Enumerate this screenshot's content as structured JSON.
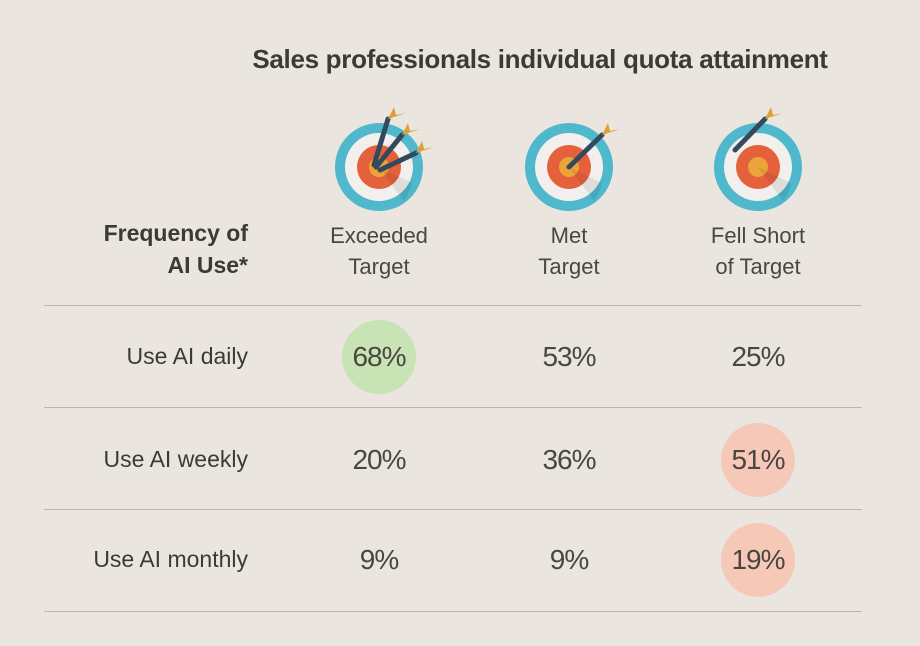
{
  "title": "Sales professionals individual quota attainment",
  "row_header": [
    "Frequency of",
    "AI Use*"
  ],
  "columns": [
    {
      "line1": "Exceeded",
      "line2": "Target",
      "icon": "target-three-arrows-icon"
    },
    {
      "line1": "Met",
      "line2": "Target",
      "icon": "target-bullseye-arrow-icon"
    },
    {
      "line1": "Fell Short",
      "line2": "of Target",
      "icon": "target-missed-arrow-icon"
    }
  ],
  "rows": [
    {
      "label": "Use AI daily",
      "values": [
        "68%",
        "53%",
        "25%"
      ]
    },
    {
      "label": "Use AI weekly",
      "values": [
        "20%",
        "36%",
        "51%"
      ]
    },
    {
      "label": "Use AI monthly",
      "values": [
        "9%",
        "9%",
        "19%"
      ]
    }
  ],
  "colors": {
    "highlight_green": "#c8e4b4",
    "highlight_red": "#f6c8b8",
    "background": "#ebe5df"
  },
  "chart_data": {
    "type": "table",
    "title": "Sales professionals individual quota attainment",
    "row_header": "Frequency of AI Use*",
    "columns": [
      "Exceeded Target",
      "Met Target",
      "Fell Short of Target"
    ],
    "rows": [
      "Use AI daily",
      "Use AI weekly",
      "Use AI monthly"
    ],
    "values": [
      [
        68,
        53,
        25
      ],
      [
        20,
        36,
        51
      ],
      [
        9,
        9,
        19
      ]
    ],
    "highlights": [
      {
        "row": 0,
        "col": 0,
        "color": "green"
      },
      {
        "row": 1,
        "col": 2,
        "color": "red"
      },
      {
        "row": 2,
        "col": 2,
        "color": "red"
      }
    ]
  }
}
